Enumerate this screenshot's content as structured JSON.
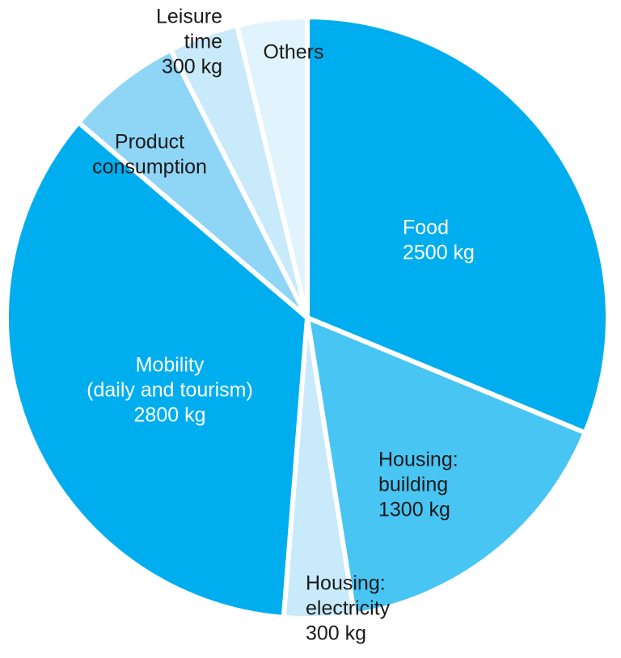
{
  "chart_data": {
    "type": "pie",
    "categories": [
      [
        "Food"
      ],
      [
        "Housing:",
        "building"
      ],
      [
        "Housing:",
        "electricity"
      ],
      [
        "Mobility",
        "(daily and tourism)"
      ],
      [
        "Product",
        "consumption"
      ],
      [
        "Leisure",
        "time"
      ],
      [
        "Others"
      ]
    ],
    "values": [
      2500,
      1300,
      300,
      2800,
      500,
      300,
      300
    ],
    "value_labels": [
      "2500 kg",
      "1300 kg",
      "300 kg",
      "2800 kg",
      null,
      "300 kg",
      null
    ],
    "colors": [
      "#00aeef",
      "#48c5f3",
      "#c8eafb",
      "#00aeef",
      "#8fd5f6",
      "#c8eafb",
      "#e1f4fd"
    ]
  }
}
